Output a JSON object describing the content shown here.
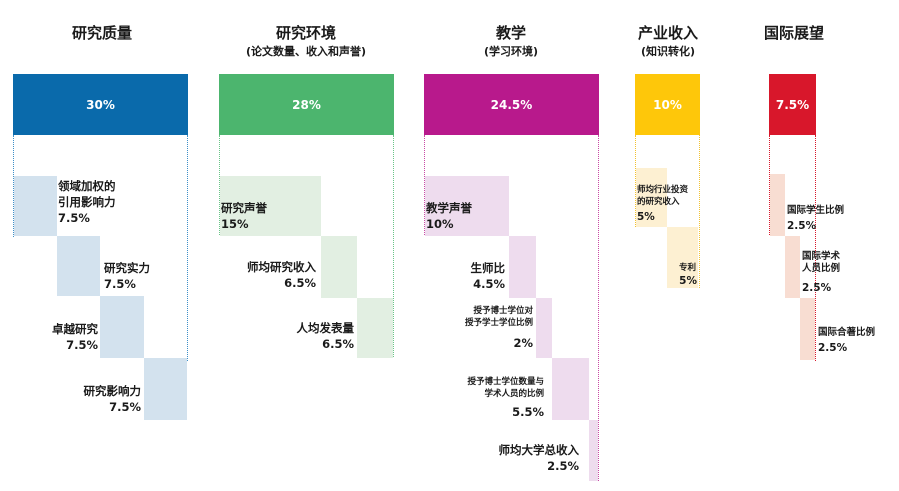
{
  "columns": [
    {
      "title": "研究质量",
      "subtitle": "",
      "weight": "30%",
      "color": "#0a6aab",
      "line_color": "#3d8fc8",
      "fill": "#d3e2ee",
      "items": [
        {
          "name": "领域加权的\n引用影响力",
          "value": "7.5%"
        },
        {
          "name": "研究实力",
          "value": "7.5%"
        },
        {
          "name": "卓越研究",
          "value": "7.5%"
        },
        {
          "name": "研究影响力",
          "value": "7.5%"
        }
      ]
    },
    {
      "title": "研究环境",
      "subtitle": "(论文数量、收入和声誉)",
      "weight": "28%",
      "color": "#4cb56e",
      "line_color": "#69c487",
      "fill": "#e2efe2",
      "items": [
        {
          "name": "研究声誉",
          "value": "15%"
        },
        {
          "name": "师均研究收入",
          "value": "6.5%"
        },
        {
          "name": "人均发表量",
          "value": "6.5%"
        }
      ]
    },
    {
      "title": "教学",
      "subtitle": "(学习环境)",
      "weight": "24.5%",
      "color": "#b8198c",
      "line_color": "#c94aa5",
      "fill": "#eedcee",
      "items": [
        {
          "name": "教学声誉",
          "value": "10%"
        },
        {
          "name": "生师比",
          "value": "4.5%"
        },
        {
          "name": "授予博士学位对\n授予学士学位比例",
          "value": "2%"
        },
        {
          "name": "授予博士学位数量与\n学术人员的比例",
          "value": "5.5%"
        },
        {
          "name": "师均大学总收入",
          "value": "2.5%"
        }
      ]
    },
    {
      "title": "产业收入",
      "subtitle": "(知识转化)",
      "weight": "10%",
      "color": "#fec70a",
      "line_color": "#f2c230",
      "fill": "#fdf0d2",
      "items": [
        {
          "name": "师均行业投资\n的研究收入",
          "value": "5%"
        },
        {
          "name": "专利",
          "value": "5%"
        }
      ]
    },
    {
      "title": "国际展望",
      "subtitle": "",
      "weight": "7.5%",
      "color": "#d8172b",
      "line_color": "#d8172b",
      "fill": "#f8ddd2",
      "items": [
        {
          "name": "国际学生比例",
          "value": "2.5%"
        },
        {
          "name": "国际学术\n人员比例",
          "value": "2.5%"
        },
        {
          "name": "国际合著比例",
          "value": "2.5%"
        }
      ]
    }
  ]
}
